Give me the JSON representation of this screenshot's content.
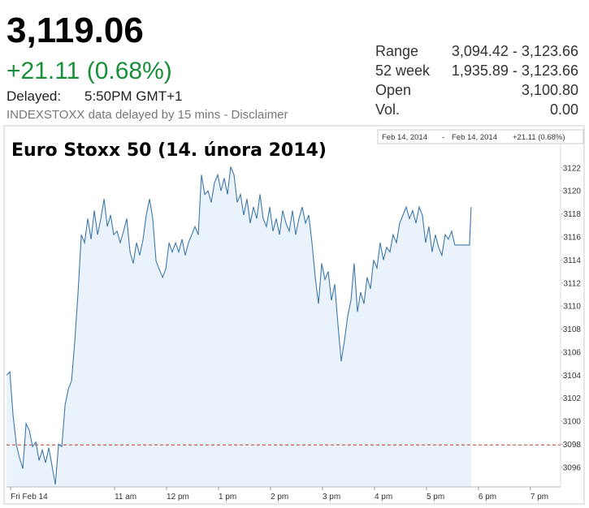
{
  "header": {
    "price": "3,119.06",
    "change": "+21.11 (0.68%)",
    "delayed_label": "Delayed:",
    "delayed_time": "5:50PM GMT+1",
    "note": "INDEXSTOXX data delayed by 15 mins - Disclaimer"
  },
  "stats": [
    {
      "label": "Range",
      "value": "3,094.42 - 3,123.66"
    },
    {
      "label": "52 week",
      "value": "1,935.89 - 3,123.66"
    },
    {
      "label": "Open",
      "value": "3,100.80"
    },
    {
      "label": "Vol.",
      "value": "0.00"
    }
  ],
  "chart_data": {
    "type": "line",
    "title": "Euro Stoxx 50 (14. února 2014)",
    "date_range": {
      "from": "Feb 14, 2014",
      "separator": "-",
      "to": "Feb 14, 2014",
      "change": "+21.11 (0.68%)"
    },
    "color": "#3f78ab",
    "fill_color": "#eaf3fb",
    "change_color": "#1a8f3a",
    "reference_line": {
      "value": 3097.95,
      "color": "#c0392b"
    },
    "xlim": [
      8.92,
      19.58
    ],
    "ylim": [
      3094.3,
      3125.3
    ],
    "xticks": [
      {
        "value": 9,
        "label": "Fri Feb 14"
      },
      {
        "value": 11,
        "label": "11 am"
      },
      {
        "value": 12,
        "label": "12 pm"
      },
      {
        "value": 13,
        "label": "1 pm"
      },
      {
        "value": 14,
        "label": "2 pm"
      },
      {
        "value": 15,
        "label": "3 pm"
      },
      {
        "value": 16,
        "label": "4 pm"
      },
      {
        "value": 17,
        "label": "5 pm"
      },
      {
        "value": 18,
        "label": "6 pm"
      },
      {
        "value": 19,
        "label": "7 pm"
      }
    ],
    "yticks": [
      3096,
      3098,
      3100,
      3102,
      3104,
      3106,
      3108,
      3110,
      3112,
      3114,
      3116,
      3118,
      3120,
      3122
    ],
    "x": [
      8.922,
      8.984,
      9.047,
      9.109,
      9.172,
      9.234,
      9.297,
      9.359,
      9.422,
      9.484,
      9.547,
      9.609,
      9.672,
      9.734,
      9.797,
      9.859,
      9.922,
      9.984,
      10.047,
      10.109,
      10.172,
      10.234,
      10.297,
      10.359,
      10.422,
      10.484,
      10.547,
      10.609,
      10.672,
      10.734,
      10.797,
      10.859,
      10.922,
      10.984,
      11.047,
      11.109,
      11.172,
      11.234,
      11.297,
      11.359,
      11.422,
      11.484,
      11.547,
      11.609,
      11.672,
      11.734,
      11.797,
      11.859,
      11.922,
      11.984,
      12.047,
      12.109,
      12.172,
      12.234,
      12.297,
      12.359,
      12.422,
      12.484,
      12.547,
      12.609,
      12.672,
      12.734,
      12.797,
      12.859,
      12.922,
      12.984,
      13.047,
      13.109,
      13.172,
      13.234,
      13.297,
      13.359,
      13.422,
      13.484,
      13.547,
      13.609,
      13.672,
      13.734,
      13.797,
      13.859,
      13.922,
      13.984,
      14.047,
      14.109,
      14.172,
      14.234,
      14.297,
      14.359,
      14.422,
      14.484,
      14.547,
      14.609,
      14.672,
      14.734,
      14.797,
      14.859,
      14.922,
      14.984,
      15.047,
      15.109,
      15.172,
      15.234,
      15.297,
      15.359,
      15.422,
      15.484,
      15.547,
      15.609,
      15.672,
      15.734,
      15.797,
      15.859,
      15.922,
      15.984,
      16.047,
      16.109,
      16.172,
      16.234,
      16.297,
      16.359,
      16.422,
      16.484,
      16.547,
      16.609,
      16.672,
      16.734,
      16.797,
      16.859,
      16.922,
      16.984,
      17.047,
      17.109,
      17.172,
      17.234,
      17.297,
      17.359,
      17.422,
      17.484,
      17.547,
      17.828,
      17.859
    ],
    "values": [
      3104.0,
      3104.3,
      3100.5,
      3098.0,
      3096.8,
      3095.9,
      3099.8,
      3099.2,
      3097.8,
      3098.2,
      3096.6,
      3097.5,
      3096.4,
      3097.7,
      3096.1,
      3094.5,
      3098.0,
      3097.8,
      3101.4,
      3102.8,
      3103.5,
      3107.0,
      3111.2,
      3116.2,
      3115.5,
      3117.6,
      3115.8,
      3118.3,
      3116.2,
      3117.6,
      3119.3,
      3116.9,
      3117.9,
      3116.2,
      3116.5,
      3115.5,
      3116.5,
      3117.6,
      3114.7,
      3113.7,
      3115.5,
      3114.4,
      3115.8,
      3117.9,
      3119.3,
      3117.6,
      3113.9,
      3113.2,
      3112.5,
      3113.2,
      3115.5,
      3114.7,
      3115.5,
      3114.7,
      3115.8,
      3114.4,
      3115.5,
      3116.2,
      3116.9,
      3116.2,
      3121.4,
      3119.7,
      3120.0,
      3119.0,
      3120.7,
      3121.4,
      3120.0,
      3121.1,
      3119.7,
      3122.1,
      3121.4,
      3119.0,
      3119.7,
      3117.9,
      3119.3,
      3117.2,
      3118.6,
      3117.6,
      3119.7,
      3117.6,
      3116.9,
      3118.6,
      3116.5,
      3117.6,
      3116.2,
      3118.3,
      3117.2,
      3116.5,
      3118.3,
      3116.2,
      3117.6,
      3118.6,
      3117.2,
      3117.9,
      3115.5,
      3112.5,
      3110.2,
      3113.7,
      3112.3,
      3113.0,
      3110.5,
      3111.9,
      3108.4,
      3105.2,
      3107.0,
      3109.1,
      3110.5,
      3113.7,
      3109.5,
      3111.2,
      3110.2,
      3112.5,
      3111.5,
      3114.0,
      3113.3,
      3115.5,
      3114.0,
      3115.1,
      3114.7,
      3116.2,
      3115.5,
      3117.2,
      3117.9,
      3118.6,
      3117.6,
      3118.3,
      3117.2,
      3118.6,
      3117.9,
      3115.5,
      3116.9,
      3114.7,
      3116.2,
      3115.1,
      3114.4,
      3116.2,
      3115.8,
      3116.5,
      3115.3,
      3115.3,
      3118.6
    ]
  }
}
